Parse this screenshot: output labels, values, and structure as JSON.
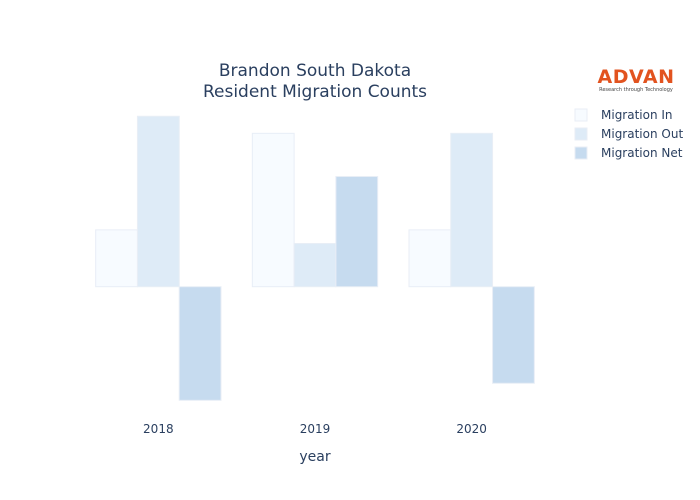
{
  "chart_data": {
    "type": "bar",
    "title": [
      "Brandon South Dakota",
      "Resident Migration Counts"
    ],
    "xlabel": "year",
    "ylabel": "",
    "categories": [
      "2018",
      "2019",
      "2020"
    ],
    "series": [
      {
        "name": "Migration In",
        "values": [
          50,
          135,
          50
        ],
        "color": "#f7fbff"
      },
      {
        "name": "Migration Out",
        "values": [
          150,
          38,
          135
        ],
        "color": "#deebf7"
      },
      {
        "name": "Migration Net",
        "values": [
          -100,
          97,
          -85
        ],
        "color": "#c6dbef"
      }
    ],
    "ylim": [
      -105,
      152
    ],
    "grid": false,
    "legend_position": "top-right"
  },
  "logo": {
    "name": "ADVAN",
    "tagline": "Research through Technology"
  }
}
